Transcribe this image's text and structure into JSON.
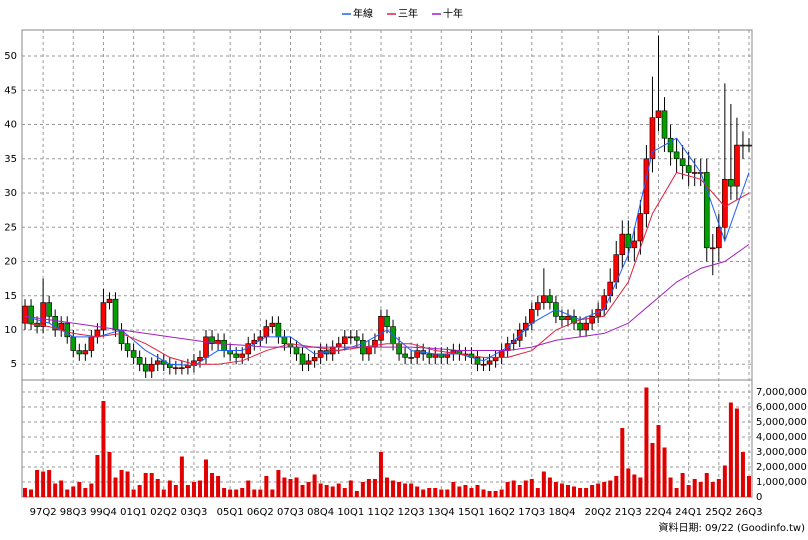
{
  "chart_data": {
    "type": "candlestick",
    "categories": [
      null,
      null,
      null,
      "97Q2",
      null,
      null,
      null,
      null,
      "98Q3",
      null,
      null,
      null,
      null,
      "99Q4",
      null,
      null,
      null,
      null,
      "01Q1",
      null,
      null,
      null,
      null,
      "02Q2",
      null,
      null,
      null,
      null,
      "03Q3",
      null,
      null,
      null,
      null,
      null,
      "05Q1",
      null,
      null,
      null,
      null,
      "06Q2",
      null,
      null,
      null,
      null,
      "07Q3",
      null,
      null,
      null,
      null,
      "08Q4",
      null,
      null,
      null,
      null,
      "10Q1",
      null,
      null,
      null,
      null,
      "11Q2",
      null,
      null,
      null,
      null,
      "12Q3",
      null,
      null,
      null,
      null,
      "13Q4",
      null,
      null,
      null,
      null,
      "15Q1",
      null,
      null,
      null,
      null,
      "16Q2",
      null,
      null,
      null,
      null,
      "17Q3",
      null,
      null,
      null,
      null,
      "18Q4",
      null,
      null,
      null,
      null,
      null,
      "20Q2",
      null,
      null,
      null,
      null,
      "21Q3",
      null,
      null,
      null,
      null,
      "22Q4",
      null,
      null,
      null,
      null,
      "24Q1",
      null,
      null,
      null,
      null,
      "25Q2",
      null,
      null,
      null,
      null,
      "26Q3"
    ],
    "open": [
      11,
      13.5,
      11,
      10.5,
      14,
      12,
      10,
      11,
      9,
      7,
      6.5,
      7,
      9,
      10,
      14,
      14.5,
      10,
      8,
      7,
      6,
      5,
      4,
      5,
      5.5,
      5,
      4.5,
      4.5,
      4.5,
      4.8,
      5.5,
      6,
      9,
      8,
      8.5,
      7,
      6.5,
      6,
      6.5,
      8,
      8.5,
      9,
      10.5,
      11,
      9,
      8,
      7.5,
      6.5,
      5,
      5.5,
      6,
      7,
      6.5,
      7.5,
      8,
      9,
      9,
      8.5,
      6.5,
      7.5,
      8.5,
      12,
      10.5,
      8,
      6.5,
      6,
      6,
      7,
      6.5,
      6,
      6.5,
      6,
      6.5,
      7,
      6.5,
      6.5,
      6,
      5,
      5,
      5.5,
      6,
      7,
      8,
      8.5,
      10,
      11,
      13,
      14,
      15,
      14,
      12,
      11.5,
      12,
      11,
      10,
      11,
      12,
      13,
      15,
      17,
      21,
      24,
      22,
      23,
      27,
      35,
      41,
      42,
      38,
      36,
      35,
      34,
      33,
      33,
      33,
      22,
      22,
      25,
      32,
      31,
      37,
      37
    ],
    "high": [
      14.5,
      14.5,
      12,
      17.5,
      15,
      13,
      12,
      12,
      10,
      8,
      8,
      10,
      11,
      16,
      15.5,
      15.5,
      11,
      9,
      8,
      7,
      6,
      6,
      6.5,
      6.5,
      6,
      5.5,
      5.5,
      5.8,
      6.5,
      7,
      10,
      10,
      9.5,
      9.5,
      8,
      7.5,
      7.5,
      9,
      9.5,
      10,
      11.5,
      12,
      12,
      10,
      9,
      8.5,
      7.5,
      6.5,
      7,
      8,
      8,
      8.5,
      9,
      10,
      10,
      10,
      9.5,
      8.5,
      9.5,
      13,
      13,
      11.5,
      9,
      7.5,
      7,
      8,
      8,
      7.5,
      7.5,
      7.5,
      7.5,
      8,
      8,
      7.5,
      7.5,
      7,
      6,
      6.5,
      7,
      8,
      9,
      9.5,
      11,
      12,
      14,
      15,
      19,
      16,
      15,
      13,
      13,
      13,
      12,
      12,
      13,
      14,
      16,
      19,
      23,
      26,
      26,
      25,
      29,
      37,
      47,
      53,
      44,
      40,
      38,
      37,
      36,
      35,
      35,
      35,
      24,
      27,
      46,
      43,
      41,
      39,
      38
    ],
    "low": [
      10,
      10,
      9.5,
      9.5,
      11,
      9,
      9,
      8,
      6,
      5.5,
      5.5,
      6,
      8,
      9,
      13,
      9,
      7,
      6,
      5,
      4,
      3,
      3,
      4,
      4,
      3.5,
      3.5,
      3.5,
      3.5,
      3.8,
      4.5,
      5,
      7,
      7,
      6,
      5.5,
      5,
      5,
      5.5,
      7,
      7.5,
      8,
      9.5,
      8,
      7,
      6.5,
      5.5,
      4,
      4,
      4.5,
      5,
      5.5,
      5.5,
      6.5,
      7,
      8,
      7.5,
      5.5,
      5.5,
      6.5,
      7.5,
      9.5,
      7,
      5.5,
      5,
      5,
      5,
      5.5,
      5,
      5,
      5,
      5,
      5.5,
      5.5,
      5.5,
      5,
      4,
      4,
      4,
      4.5,
      5,
      6,
      7,
      7.5,
      9,
      10,
      12,
      13,
      13,
      11,
      10.5,
      10.5,
      10,
      9,
      9,
      10,
      11,
      12,
      14,
      16,
      19,
      20,
      20,
      21,
      25,
      33,
      39,
      36,
      34,
      33,
      32,
      31,
      31,
      31,
      20,
      18,
      20,
      23,
      29,
      29,
      35,
      36
    ],
    "close": [
      13.5,
      11,
      10.5,
      14,
      12,
      10,
      11,
      9,
      7,
      6.5,
      7,
      9,
      10,
      14,
      14.5,
      10,
      8,
      7,
      6,
      5,
      4,
      5,
      5.5,
      5,
      4.5,
      4.5,
      4.5,
      4.8,
      5.5,
      6,
      9,
      8,
      8.5,
      7,
      6.5,
      6,
      6.5,
      8,
      8.5,
      9,
      10.5,
      11,
      9,
      8,
      7.5,
      6.5,
      5,
      5.5,
      6,
      7,
      6.5,
      7.5,
      8,
      9,
      9,
      8.5,
      6.5,
      7.5,
      8.5,
      12,
      10.5,
      8,
      6.5,
      6,
      6,
      7,
      6.5,
      6,
      6.5,
      6,
      6.5,
      7,
      6.5,
      6.5,
      6,
      5,
      5,
      5.5,
      6,
      7,
      8,
      8.5,
      10,
      11,
      13,
      14,
      15,
      14,
      12,
      11.5,
      12,
      11,
      10,
      11,
      12,
      13,
      15,
      17,
      21,
      24,
      22,
      23,
      27,
      35,
      41,
      42,
      38,
      36,
      35,
      34,
      33,
      33,
      33,
      22,
      22,
      25,
      32,
      31,
      37,
      37,
      37
    ],
    "up_color": "#ff0000",
    "down_color": "#00a000",
    "volume": [
      600000,
      500000,
      1800000,
      1700000,
      1800000,
      900000,
      1100000,
      500000,
      700000,
      1000000,
      600000,
      900000,
      2800000,
      6400000,
      3000000,
      1300000,
      1800000,
      1700000,
      500000,
      800000,
      1600000,
      1600000,
      1200000,
      500000,
      1100000,
      800000,
      2700000,
      800000,
      1000000,
      1100000,
      2500000,
      1600000,
      1400000,
      600000,
      500000,
      500000,
      600000,
      1100000,
      500000,
      500000,
      1400000,
      500000,
      1800000,
      1300000,
      1200000,
      1300000,
      800000,
      1000000,
      1500000,
      900000,
      800000,
      700000,
      900000,
      600000,
      1100000,
      400000,
      1000000,
      1200000,
      1200000,
      3000000,
      1300000,
      1100000,
      1000000,
      900000,
      900000,
      700000,
      500000,
      600000,
      600000,
      500000,
      500000,
      1000000,
      700000,
      800000,
      600000,
      800000,
      500000,
      400000,
      400000,
      500000,
      1000000,
      1100000,
      800000,
      1100000,
      1200000,
      600000,
      1700000,
      1300000,
      1000000,
      900000,
      800000,
      700000,
      600000,
      600000,
      800000,
      900000,
      1000000,
      1100000,
      1400000,
      4600000,
      1900000,
      1500000,
      1300000,
      7300000,
      3600000,
      4800000,
      3300000,
      1300000,
      600000,
      1600000,
      800000,
      1200000,
      1000000,
      1600000,
      1000000,
      1200000,
      2100000,
      6300000,
      5900000,
      3000000,
      1400000
    ],
    "volume_color": "#e00000",
    "series": [
      {
        "name": "年線",
        "color": "#2060ff",
        "x": [
          0,
          4,
          8,
          12,
          16,
          20,
          24,
          28,
          32,
          36,
          40,
          44,
          48,
          52,
          56,
          60,
          64,
          68,
          72,
          76,
          80,
          84,
          88,
          92,
          96,
          100,
          104,
          108,
          112,
          116,
          120
        ],
        "values": [
          12,
          11,
          9,
          9,
          10,
          7,
          5,
          4.8,
          7,
          7,
          9,
          9,
          6.5,
          7,
          8,
          10,
          7,
          6.5,
          6.5,
          5.5,
          7.5,
          11,
          13,
          11.5,
          13,
          21,
          36,
          38,
          33,
          23,
          33
        ]
      },
      {
        "name": "三年",
        "color": "#e02040",
        "x": [
          0,
          4,
          8,
          12,
          16,
          20,
          24,
          28,
          32,
          36,
          40,
          44,
          48,
          52,
          56,
          60,
          64,
          68,
          72,
          76,
          80,
          84,
          88,
          92,
          96,
          100,
          104,
          108,
          112,
          116,
          120
        ],
        "values": [
          11,
          10.5,
          9.5,
          9,
          9.5,
          8,
          6,
          5,
          5,
          5.5,
          7,
          8,
          7.5,
          7,
          7.5,
          8,
          8,
          7,
          6.5,
          6,
          6,
          7,
          10,
          11.5,
          12,
          17,
          27,
          33,
          32,
          28,
          30
        ]
      },
      {
        "name": "十年",
        "color": "#a020c0",
        "x": [
          0,
          4,
          8,
          12,
          16,
          20,
          24,
          28,
          32,
          36,
          40,
          44,
          48,
          52,
          56,
          60,
          64,
          68,
          72,
          76,
          80,
          84,
          88,
          92,
          96,
          100,
          104,
          108,
          112,
          116,
          120
        ],
        "values": [
          12,
          11.5,
          11,
          10.5,
          10,
          9.5,
          9,
          8.5,
          8,
          7.8,
          7.5,
          7.5,
          7.5,
          7.5,
          7.5,
          7.5,
          7.5,
          7.3,
          7,
          7,
          7,
          7.5,
          8.5,
          9,
          9.5,
          11,
          14,
          17,
          19,
          20,
          22.5
        ]
      }
    ],
    "ylim": [
      2.7,
      53.8
    ],
    "yticks": [
      5,
      10,
      15,
      20,
      25,
      30,
      35,
      40,
      45,
      50
    ],
    "y2lim": [
      0,
      7800000
    ],
    "y2ticks": [
      0,
      {
        "value": 1000000,
        "label": "1,000,000"
      },
      {
        "value": 2000000,
        "label": "2,000,000"
      },
      {
        "value": 3000000,
        "label": "3,000,000"
      },
      {
        "value": 4000000,
        "label": "4,000,000"
      },
      {
        "value": 5000000,
        "label": "5,000,000"
      },
      {
        "value": 6000000,
        "label": "6,000,000"
      },
      {
        "value": 7000000,
        "label": "7,000,000"
      }
    ],
    "grid": true,
    "legend": "top",
    "footer": "資料日期: 09/22 (Goodinfo.tw)"
  }
}
